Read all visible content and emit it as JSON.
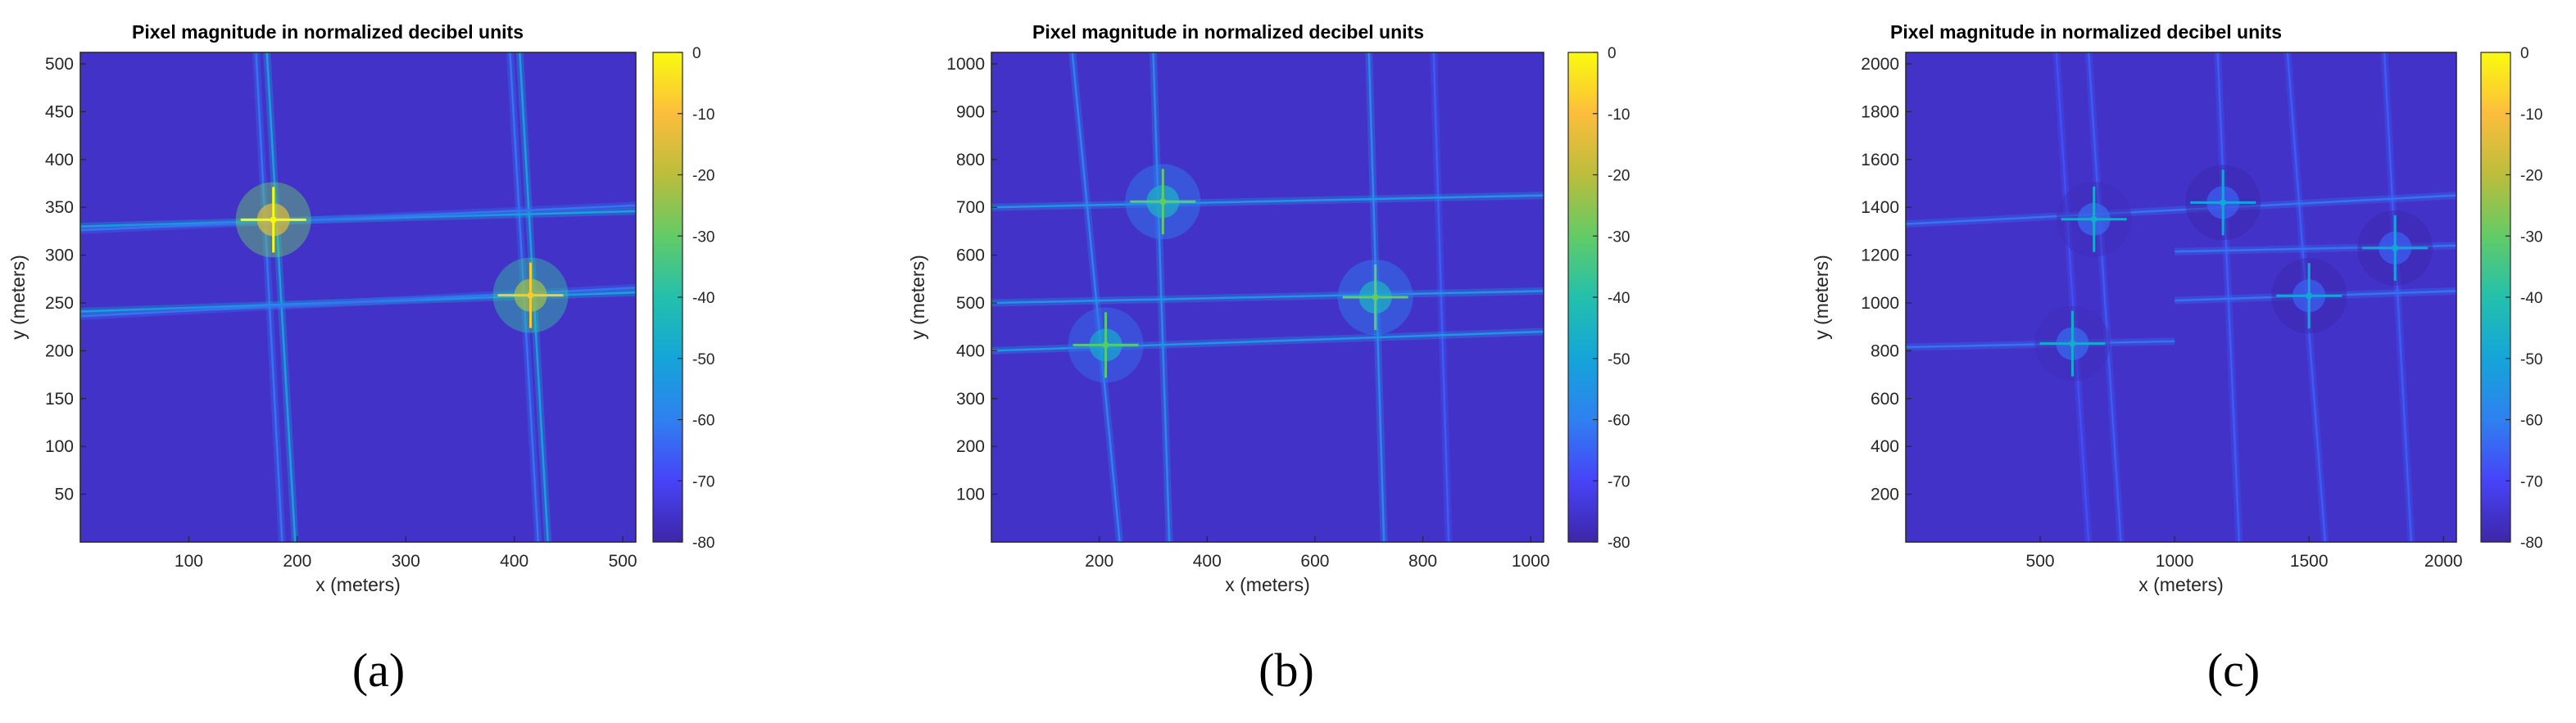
{
  "figure": {
    "captions": [
      "(a)",
      "(b)",
      "(c)"
    ],
    "colorbar_ticks": [
      "0",
      "-10",
      "-20",
      "-30",
      "-40",
      "-50",
      "-60",
      "-70",
      "-80"
    ],
    "colormap": [
      "#3e26a8",
      "#4743f8",
      "#2f80f0",
      "#14a5d9",
      "#23c0ac",
      "#63cb66",
      "#bcbd3c",
      "#fdbd3c",
      "#f9fb0e"
    ]
  },
  "chart_data": [
    {
      "type": "heatmap",
      "title": "Pixel magnitude in normalized decibel units",
      "xlabel": "x (meters)",
      "ylabel": "y (meters)",
      "xlim": [
        0,
        512
      ],
      "ylim": [
        0,
        512
      ],
      "xticks": [
        100,
        200,
        300,
        400,
        500
      ],
      "yticks": [
        50,
        100,
        150,
        200,
        250,
        300,
        350,
        400,
        450,
        500
      ],
      "colorbar": {
        "label": "",
        "min": -80,
        "max": 0
      },
      "background_db": -76,
      "targets": [
        {
          "x": 178,
          "y": 337,
          "peak_db": 0
        },
        {
          "x": 415,
          "y": 258,
          "peak_db": -8
        }
      ],
      "streaks": [
        {
          "orientation": "vertical",
          "x1": 172,
          "y1": 512,
          "x2": 198,
          "y2": 0,
          "db": -52
        },
        {
          "orientation": "vertical",
          "x1": 162,
          "y1": 512,
          "x2": 186,
          "y2": 0,
          "db": -62
        },
        {
          "orientation": "vertical",
          "x1": 405,
          "y1": 512,
          "x2": 431,
          "y2": 0,
          "db": -52
        },
        {
          "orientation": "vertical",
          "x1": 396,
          "y1": 512,
          "x2": 422,
          "y2": 0,
          "db": -62
        },
        {
          "orientation": "horizontal",
          "x1": 0,
          "y1": 330,
          "x2": 512,
          "y2": 346,
          "db": -50
        },
        {
          "orientation": "horizontal",
          "x1": 0,
          "y1": 326,
          "x2": 512,
          "y2": 352,
          "db": -62
        },
        {
          "orientation": "horizontal",
          "x1": 0,
          "y1": 241,
          "x2": 512,
          "y2": 261,
          "db": -50
        },
        {
          "orientation": "horizontal",
          "x1": 0,
          "y1": 236,
          "x2": 512,
          "y2": 266,
          "db": -62
        }
      ]
    },
    {
      "type": "heatmap",
      "title": "Pixel magnitude in normalized decibel units",
      "xlabel": "x (meters)",
      "ylabel": "y (meters)",
      "xlim": [
        0,
        1024
      ],
      "ylim": [
        0,
        1024
      ],
      "xticks": [
        200,
        400,
        600,
        800,
        1000
      ],
      "yticks": [
        100,
        200,
        300,
        400,
        500,
        600,
        700,
        800,
        900,
        1000
      ],
      "colorbar": {
        "label": "",
        "min": -80,
        "max": 0
      },
      "background_db": -76,
      "targets": [
        {
          "x": 318,
          "y": 712,
          "peak_db": -30
        },
        {
          "x": 212,
          "y": 412,
          "peak_db": -32
        },
        {
          "x": 712,
          "y": 512,
          "peak_db": -30
        }
      ],
      "streaks": [
        {
          "orientation": "vertical",
          "x1": 150,
          "y1": 1024,
          "x2": 238,
          "y2": 0,
          "db": -60
        },
        {
          "orientation": "vertical",
          "x1": 300,
          "y1": 1024,
          "x2": 330,
          "y2": 0,
          "db": -58
        },
        {
          "orientation": "vertical",
          "x1": 700,
          "y1": 1024,
          "x2": 728,
          "y2": 0,
          "db": -58
        },
        {
          "orientation": "vertical",
          "x1": 820,
          "y1": 1024,
          "x2": 848,
          "y2": 0,
          "db": -66
        },
        {
          "orientation": "horizontal",
          "x1": 0,
          "y1": 700,
          "x2": 1024,
          "y2": 725,
          "db": -55
        },
        {
          "orientation": "horizontal",
          "x1": 0,
          "y1": 500,
          "x2": 1024,
          "y2": 525,
          "db": -55
        },
        {
          "orientation": "horizontal",
          "x1": 0,
          "y1": 400,
          "x2": 1024,
          "y2": 440,
          "db": -55
        }
      ]
    },
    {
      "type": "heatmap",
      "title": "Pixel magnitude in normalized decibel units",
      "xlabel": "x (meters)",
      "ylabel": "y (meters)",
      "xlim": [
        0,
        2048
      ],
      "ylim": [
        0,
        2048
      ],
      "xticks": [
        500,
        1000,
        1500,
        2000
      ],
      "yticks": [
        200,
        400,
        600,
        800,
        1000,
        1200,
        1400,
        1600,
        1800,
        2000
      ],
      "colorbar": {
        "label": "",
        "min": -80,
        "max": 0
      },
      "background_db": -76,
      "targets": [
        {
          "x": 620,
          "y": 830,
          "peak_db": -48
        },
        {
          "x": 700,
          "y": 1350,
          "peak_db": -48
        },
        {
          "x": 1180,
          "y": 1420,
          "peak_db": -50
        },
        {
          "x": 1500,
          "y": 1030,
          "peak_db": -50
        },
        {
          "x": 1820,
          "y": 1230,
          "peak_db": -50
        }
      ],
      "streaks": [
        {
          "orientation": "vertical",
          "x1": 560,
          "y1": 2048,
          "x2": 680,
          "y2": 0,
          "db": -68
        },
        {
          "orientation": "vertical",
          "x1": 680,
          "y1": 2048,
          "x2": 800,
          "y2": 0,
          "db": -66
        },
        {
          "orientation": "vertical",
          "x1": 1160,
          "y1": 2048,
          "x2": 1240,
          "y2": 0,
          "db": -66
        },
        {
          "orientation": "vertical",
          "x1": 1420,
          "y1": 2048,
          "x2": 1560,
          "y2": 0,
          "db": -66
        },
        {
          "orientation": "vertical",
          "x1": 1780,
          "y1": 2048,
          "x2": 1880,
          "y2": 0,
          "db": -66
        },
        {
          "orientation": "horizontal",
          "x1": 0,
          "y1": 1330,
          "x2": 2048,
          "y2": 1450,
          "db": -62
        },
        {
          "orientation": "horizontal",
          "x1": 0,
          "y1": 815,
          "x2": 1000,
          "y2": 840,
          "db": -62
        },
        {
          "orientation": "horizontal",
          "x1": 1000,
          "y1": 1010,
          "x2": 2048,
          "y2": 1050,
          "db": -62
        },
        {
          "orientation": "horizontal",
          "x1": 1000,
          "y1": 1215,
          "x2": 2048,
          "y2": 1240,
          "db": -62
        }
      ]
    }
  ]
}
